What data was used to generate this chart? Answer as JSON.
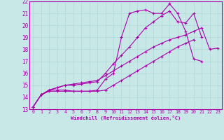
{
  "xlabel": "Windchill (Refroidissement éolien,°C)",
  "bg_color": "#c8e8e8",
  "grid_color": "#b0d8d8",
  "line_color": "#aa00aa",
  "xlim": [
    -0.5,
    23.5
  ],
  "ylim": [
    13,
    22
  ],
  "xticks": [
    0,
    1,
    2,
    3,
    4,
    5,
    6,
    7,
    8,
    9,
    10,
    11,
    12,
    13,
    14,
    15,
    16,
    17,
    18,
    19,
    20,
    21,
    22,
    23
  ],
  "yticks": [
    13,
    14,
    15,
    16,
    17,
    18,
    19,
    20,
    21,
    22
  ],
  "lines": [
    [
      13.2,
      14.2,
      14.6,
      14.6,
      14.6,
      14.5,
      14.5,
      14.5,
      14.6,
      15.5,
      16.0,
      19.0,
      21.0,
      21.2,
      21.3,
      21.0,
      21.0,
      21.8,
      21.0,
      19.5,
      17.2,
      17.0,
      null,
      null
    ],
    [
      13.2,
      14.2,
      14.6,
      14.8,
      15.0,
      15.0,
      15.1,
      15.2,
      15.3,
      16.0,
      16.8,
      17.5,
      18.2,
      19.0,
      19.8,
      20.3,
      20.8,
      21.2,
      20.3,
      20.2,
      21.0,
      19.0,
      null,
      null
    ],
    [
      13.2,
      14.2,
      14.6,
      14.8,
      15.0,
      15.1,
      15.2,
      15.3,
      15.4,
      15.8,
      16.2,
      16.6,
      17.0,
      17.4,
      17.8,
      18.2,
      18.5,
      18.8,
      19.0,
      19.2,
      19.5,
      19.8,
      18.0,
      18.1
    ],
    [
      13.2,
      14.2,
      14.5,
      14.5,
      14.5,
      14.5,
      14.5,
      14.5,
      14.5,
      14.6,
      15.0,
      15.4,
      15.8,
      16.2,
      16.6,
      17.0,
      17.4,
      17.8,
      18.2,
      18.5,
      18.8,
      null,
      null,
      null
    ]
  ]
}
